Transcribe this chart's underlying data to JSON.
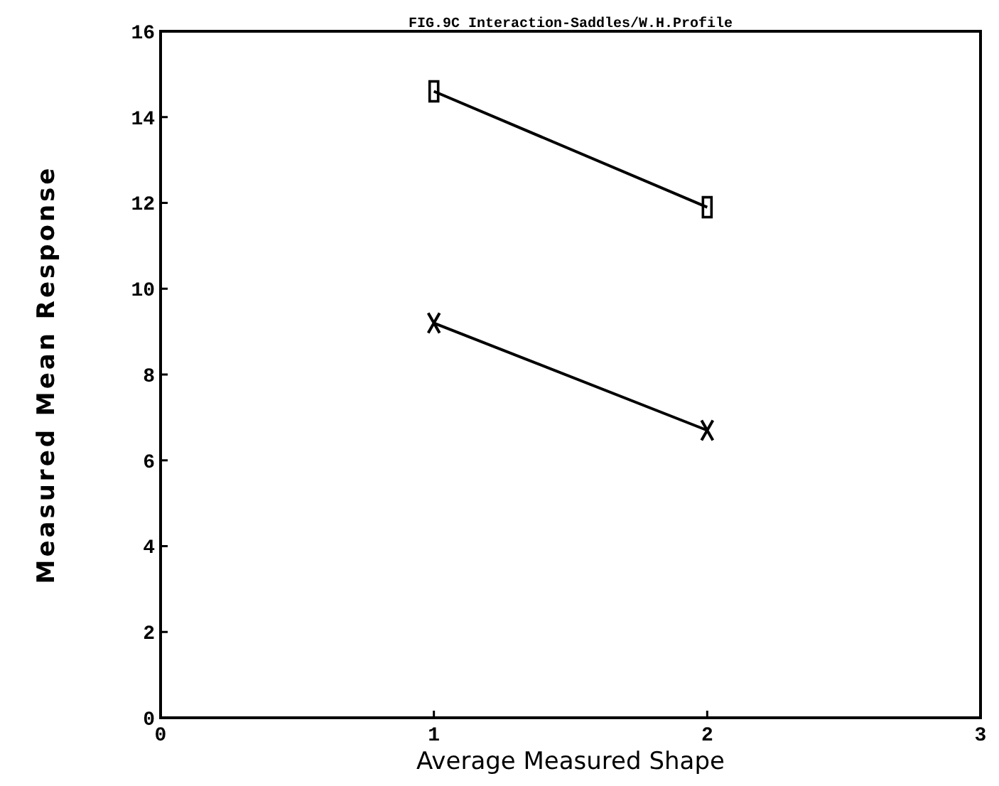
{
  "chart_data": {
    "type": "line",
    "title": "FIG.9C Interaction-Saddles/W.H.Profile",
    "xlabel": "Average Measured Shape",
    "ylabel": "Measured Mean Response",
    "x": [
      1,
      2
    ],
    "xlim": [
      0,
      3
    ],
    "xticks": [
      0,
      1,
      2,
      3
    ],
    "ylim": [
      0,
      16
    ],
    "yticks": [
      0,
      2,
      4,
      6,
      8,
      10,
      12,
      14,
      16
    ],
    "grid": false,
    "line_style": "solid",
    "series": [
      {
        "color": "#000000",
        "marker": "square",
        "values": [
          14.6,
          11.9
        ]
      },
      {
        "color": "#000000",
        "marker": "cross",
        "values": [
          9.2,
          6.7
        ]
      }
    ]
  }
}
